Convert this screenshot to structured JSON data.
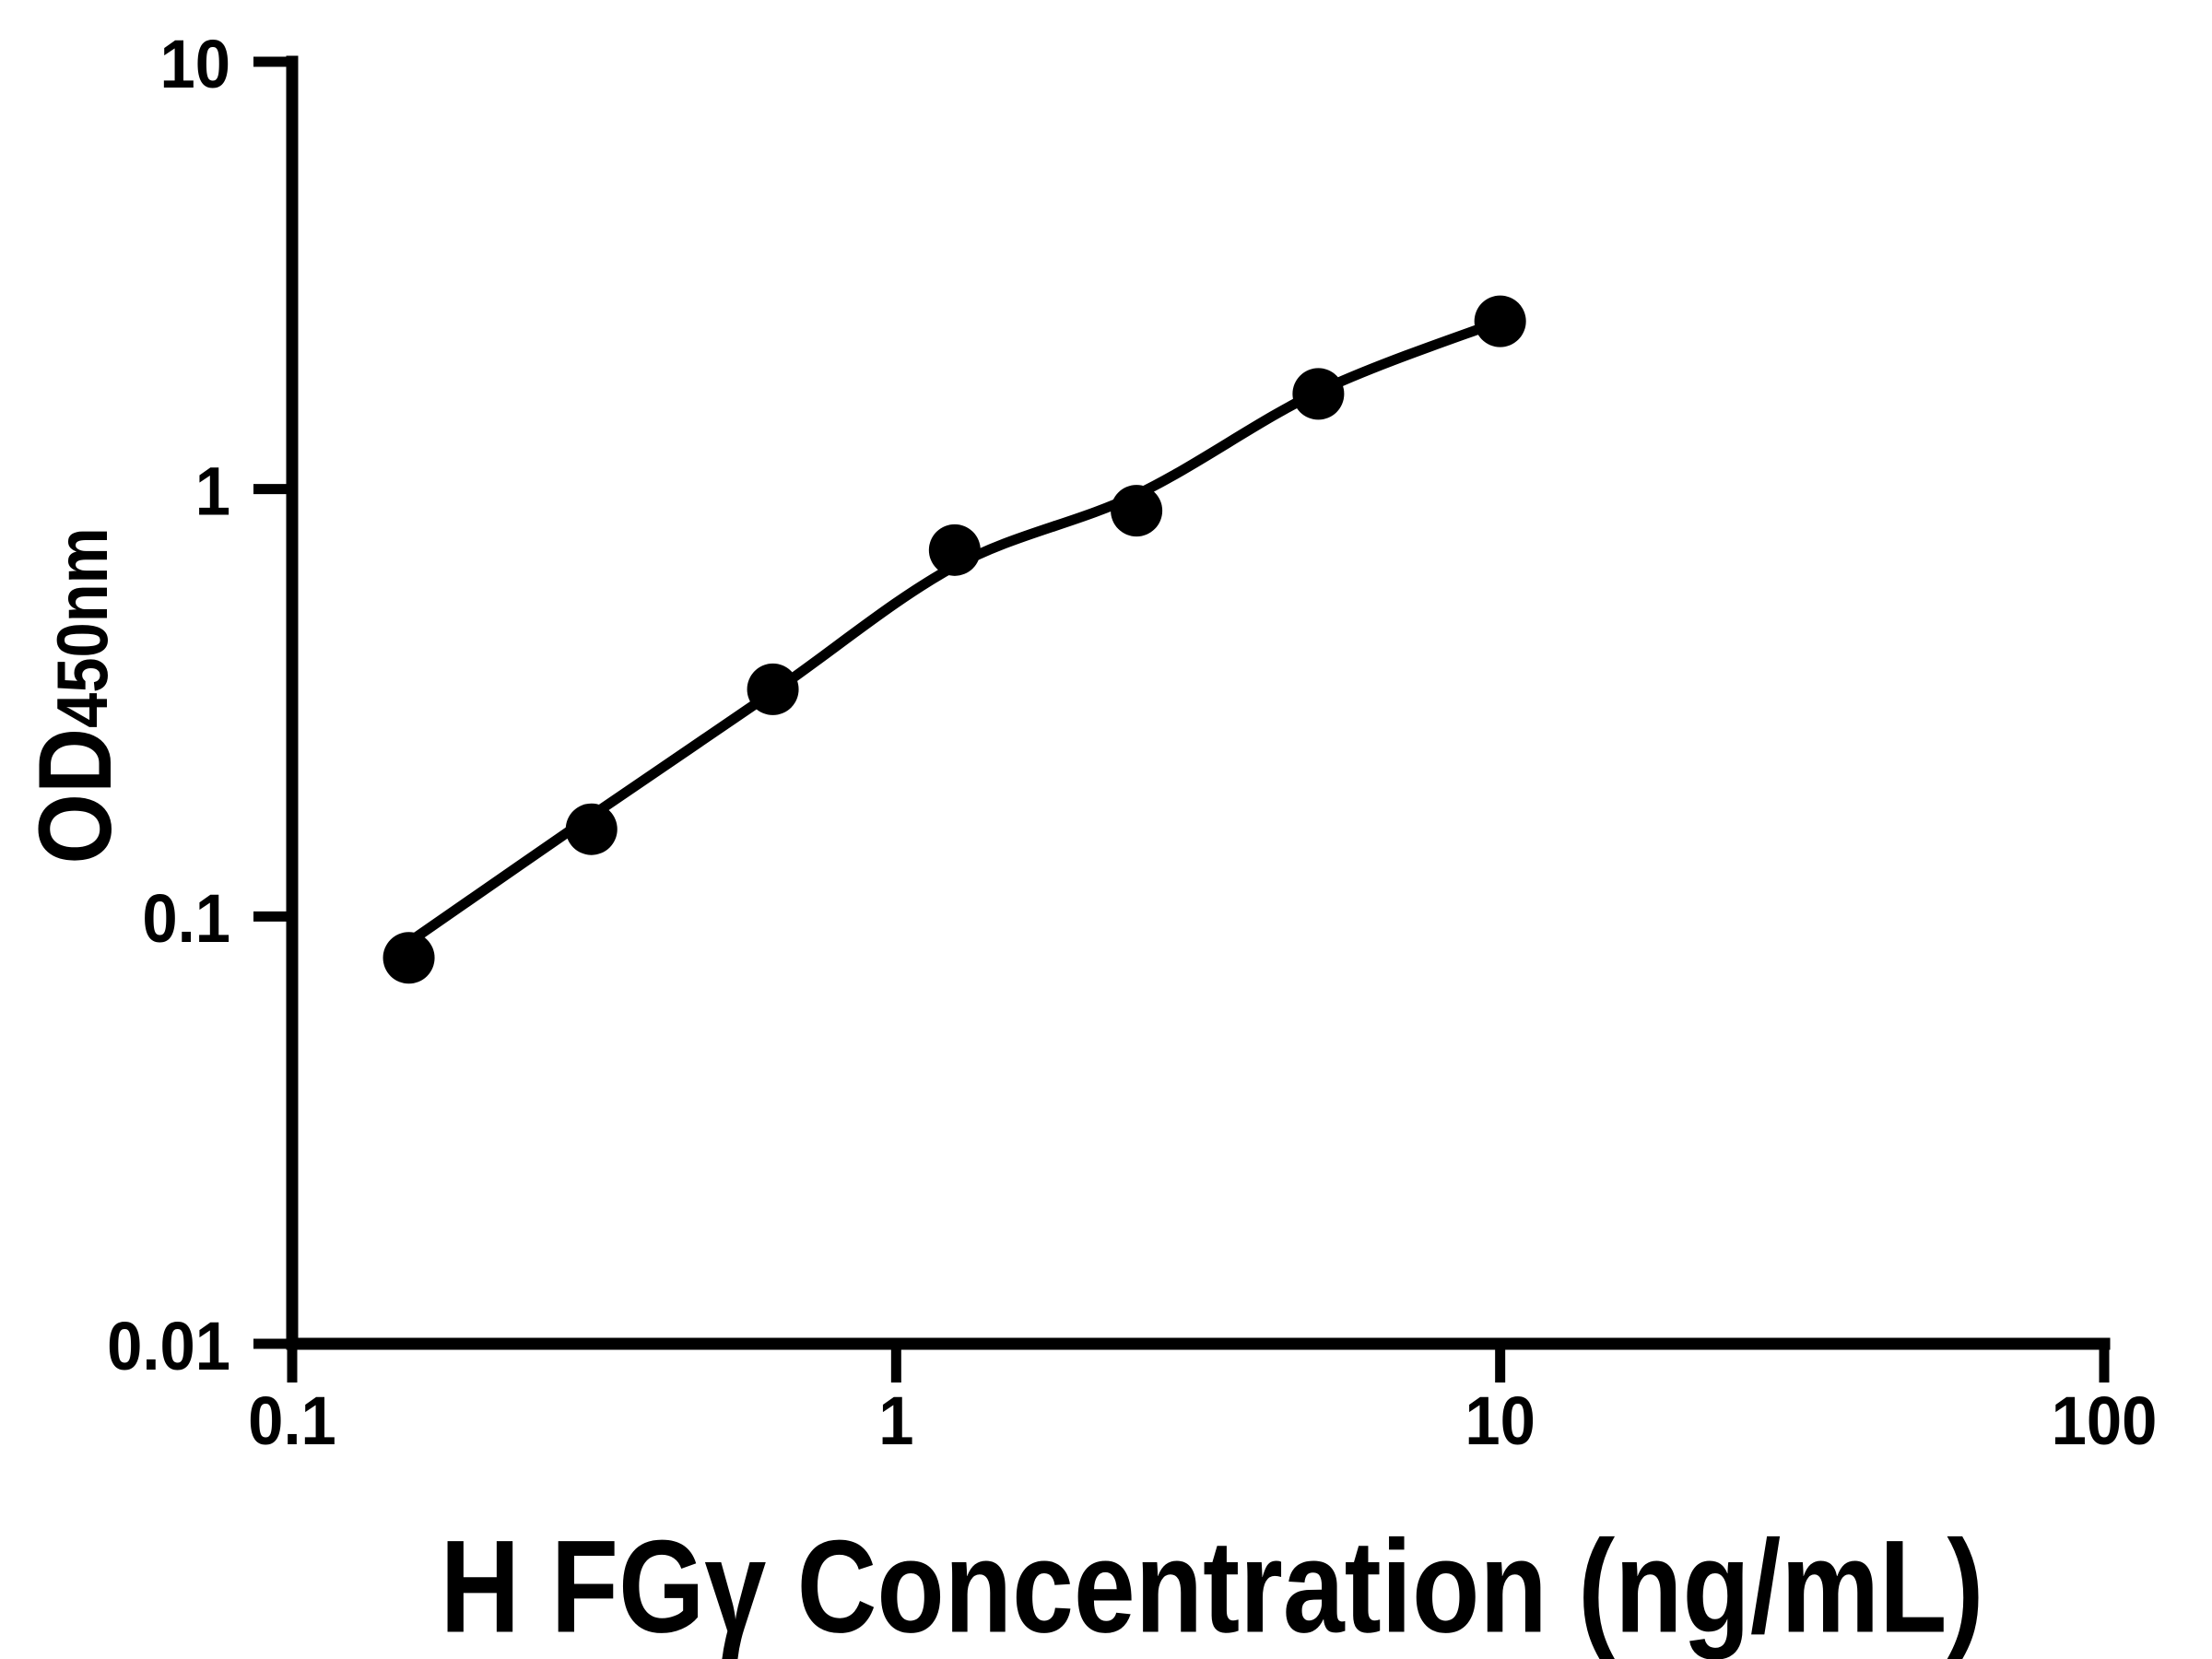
{
  "figure": {
    "background_color": "#ffffff",
    "foreground_color": "#000000"
  },
  "chart_data": {
    "type": "scatter",
    "title": "",
    "xlabel": "H FGγ Concentration (ng/mL)",
    "ylabel_main": "OD",
    "ylabel_subscript": "450nm",
    "x_scale": "log",
    "y_scale": "log",
    "xlim": [
      0.1,
      100
    ],
    "ylim": [
      0.01,
      10
    ],
    "grid": false,
    "legend": "none",
    "marker": {
      "shape": "circle",
      "color": "#000000"
    },
    "fit_line_color": "#000000",
    "x_ticks": [
      {
        "value": 0.1,
        "label": "0.1"
      },
      {
        "value": 1,
        "label": "1"
      },
      {
        "value": 10,
        "label": "10"
      },
      {
        "value": 100,
        "label": "100"
      }
    ],
    "y_ticks": [
      {
        "value": 10,
        "label": "10"
      },
      {
        "value": 1,
        "label": "1"
      },
      {
        "value": 0.1,
        "label": "0.1"
      },
      {
        "value": 0.01,
        "label": "0.01"
      }
    ],
    "points": [
      {
        "x": 0.156,
        "y": 0.08
      },
      {
        "x": 0.313,
        "y": 0.16
      },
      {
        "x": 0.625,
        "y": 0.34
      },
      {
        "x": 1.25,
        "y": 0.72
      },
      {
        "x": 2.5,
        "y": 0.89
      },
      {
        "x": 5,
        "y": 1.67
      },
      {
        "x": 10,
        "y": 2.47
      }
    ],
    "fit_curve_points": [
      {
        "x": 0.156,
        "y": 0.087
      },
      {
        "x": 0.313,
        "y": 0.172
      },
      {
        "x": 0.625,
        "y": 0.335
      },
      {
        "x": 1.25,
        "y": 0.66
      },
      {
        "x": 2.5,
        "y": 0.97
      },
      {
        "x": 5,
        "y": 1.69
      },
      {
        "x": 10,
        "y": 2.47
      }
    ]
  }
}
